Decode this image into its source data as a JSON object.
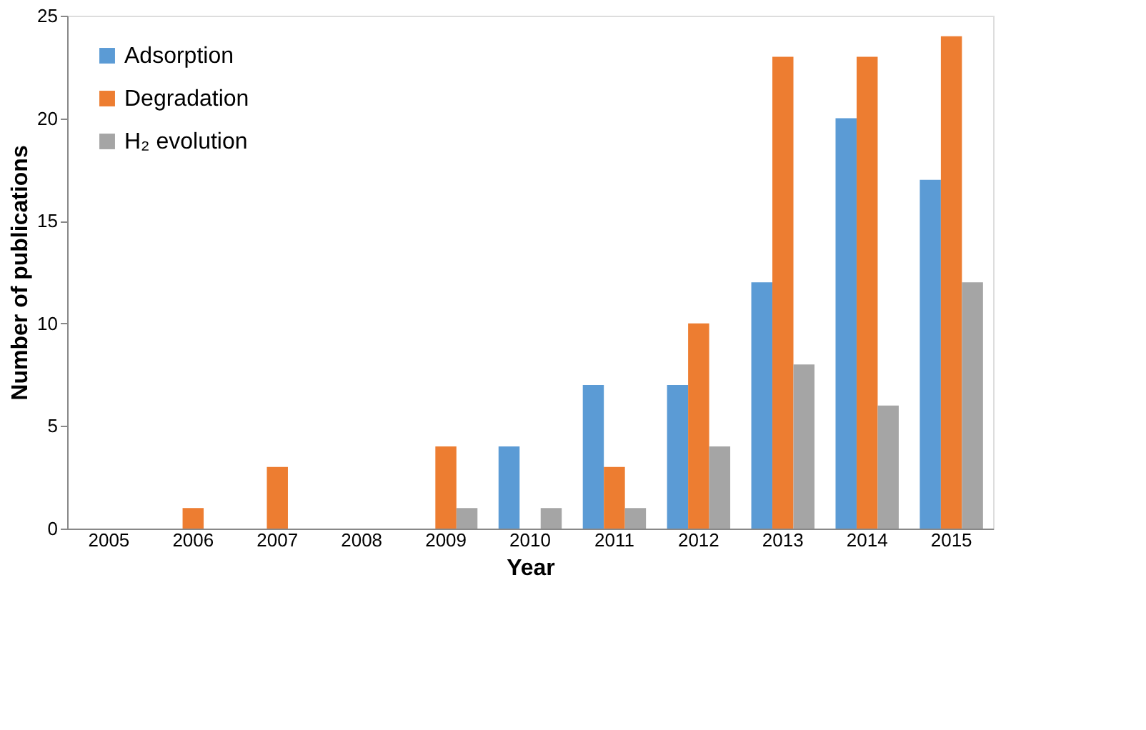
{
  "chart_data": {
    "type": "bar",
    "xlabel": "Year",
    "ylabel": "Number of publications",
    "categories": [
      "2005",
      "2006",
      "2007",
      "2008",
      "2009",
      "2010",
      "2011",
      "2012",
      "2013",
      "2014",
      "2015"
    ],
    "series": [
      {
        "name": "Adsorption",
        "color": "#5b9bd5",
        "values": [
          0,
          0,
          0,
          0,
          0,
          4,
          7,
          7,
          12,
          20,
          17
        ]
      },
      {
        "name": "Degradation",
        "color": "#ed7d31",
        "values": [
          0,
          1,
          3,
          0,
          4,
          0,
          3,
          10,
          23,
          23,
          24
        ]
      },
      {
        "name": "H₂ evolution",
        "color": "#a5a5a5",
        "values": [
          0,
          0,
          0,
          0,
          1,
          1,
          1,
          4,
          8,
          6,
          12
        ]
      }
    ],
    "ylim": [
      0,
      25
    ],
    "yticks": [
      0,
      5,
      10,
      15,
      20,
      25
    ],
    "grid": false,
    "legend": "top left"
  }
}
